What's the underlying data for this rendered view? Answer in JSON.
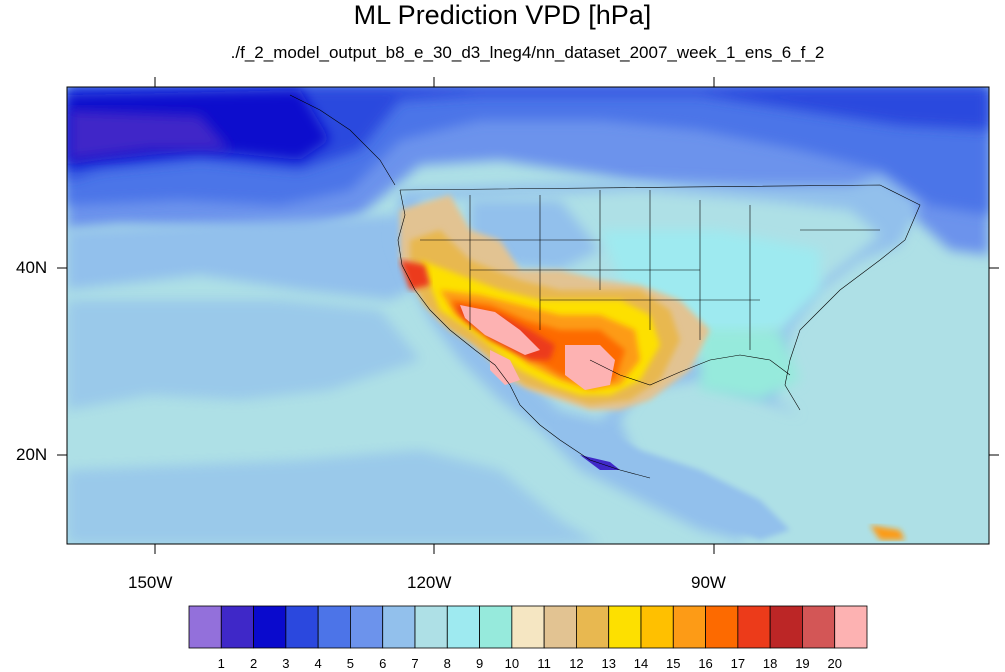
{
  "title": "ML Prediction VPD [hPa]",
  "subtitle": "./f_2_model_output_b8_e_30_d3_lneg4/nn_dataset_2007_week_1_ens_6_f_2",
  "lat_labels": [
    "40N",
    "20N"
  ],
  "lon_labels": [
    "150W",
    "120W",
    "90W"
  ],
  "colorbar": {
    "labels": [
      "1",
      "2",
      "3",
      "4",
      "5",
      "6",
      "7",
      "8",
      "9",
      "10",
      "11",
      "12",
      "13",
      "14",
      "15",
      "16",
      "17",
      "18",
      "19",
      "20"
    ],
    "colors": [
      "#9370db",
      "#3f28c8",
      "#0a0acd",
      "#2b48de",
      "#4c74e8",
      "#6c93ec",
      "#92c0ec",
      "#aee0e6",
      "#9eeaf0",
      "#96eadc",
      "#f5e6c2",
      "#e2c392",
      "#e8b850",
      "#fde000",
      "#ffc000",
      "#fd9b16",
      "#fd6a00",
      "#ec3b1a",
      "#bc2626",
      "#d35656",
      "#fdb2b2"
    ]
  }
}
